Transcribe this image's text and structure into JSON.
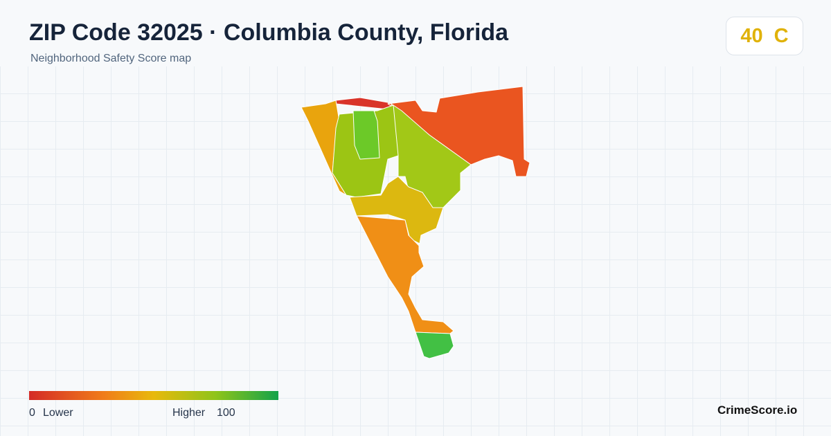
{
  "header": {
    "title": "ZIP Code 32025 · Columbia County, Florida",
    "subtitle": "Neighborhood Safety Score map"
  },
  "badge": {
    "score": 40,
    "grade": "C"
  },
  "legend": {
    "min": 0,
    "low_label": "Lower",
    "high_label": "Higher",
    "max": 100
  },
  "brand": "CrimeScore.io"
}
